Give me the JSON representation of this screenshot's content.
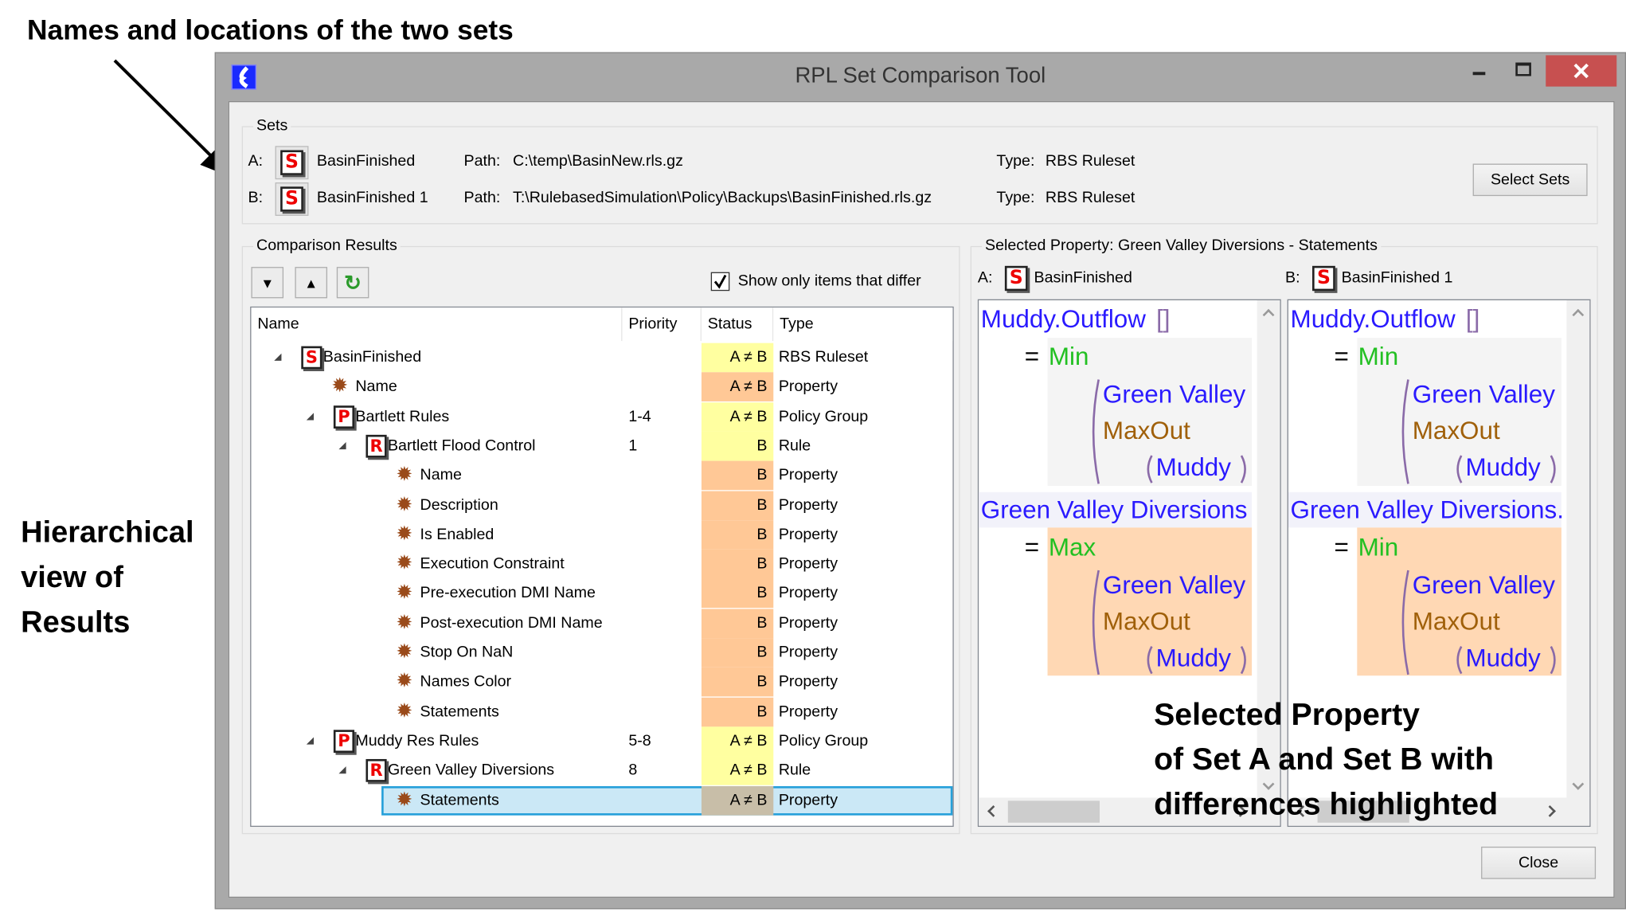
{
  "annotations": {
    "top": "Names and locations of the two sets",
    "left": [
      "Hierarchical",
      "view of",
      "Results"
    ],
    "right": [
      "Selected Property",
      "of Set A and Set B with",
      "differences highlighted"
    ]
  },
  "window": {
    "title": "RPL Set Comparison Tool",
    "close_color": "#c75050"
  },
  "sets": {
    "label": "Sets",
    "a": {
      "prefix": "A:",
      "icon": "S",
      "name": "BasinFinished",
      "path_label": "Path:",
      "path": "C:\\temp\\BasinNew.rls.gz",
      "type_label": "Type:",
      "type": "RBS Ruleset"
    },
    "b": {
      "prefix": "B:",
      "icon": "S",
      "name": "BasinFinished 1",
      "path_label": "Path:",
      "path": "T:\\RulebasedSimulation\\Policy\\Backups\\BasinFinished.rls.gz",
      "type_label": "Type:",
      "type": "RBS Ruleset"
    },
    "select_button": "Select Sets"
  },
  "results": {
    "label": "Comparison Results",
    "toolbar": {
      "next": "▼",
      "prev": "▲",
      "refresh": "↻"
    },
    "show_only_differ": {
      "label": "Show only items that differ",
      "checked": true
    },
    "columns": [
      "Name",
      "Priority",
      "Status",
      "Type"
    ],
    "status_colors": {
      "yellow": "#ffffa0",
      "orange": "#ffc896",
      "selected": "#c8bea8"
    },
    "rows": [
      {
        "name": "BasinFinished",
        "priority": "",
        "status": "A ≠ B",
        "type": "RBS Ruleset",
        "level": 0,
        "icon": "S",
        "expanded": true,
        "color": "yellow"
      },
      {
        "name": "Name",
        "priority": "",
        "status": "A ≠ B",
        "type": "Property",
        "level": 1,
        "icon": "gear",
        "color": "orange"
      },
      {
        "name": "Bartlett Rules",
        "priority": "1-4",
        "status": "A ≠ B",
        "type": "Policy Group",
        "level": 1,
        "icon": "P",
        "expanded": true,
        "color": "yellow"
      },
      {
        "name": "Bartlett Flood Control",
        "priority": "1",
        "status": "B",
        "type": "Rule",
        "level": 2,
        "icon": "R",
        "expanded": true,
        "color": "yellow"
      },
      {
        "name": "Name",
        "priority": "",
        "status": "B",
        "type": "Property",
        "level": 3,
        "icon": "gear",
        "color": "orange"
      },
      {
        "name": "Description",
        "priority": "",
        "status": "B",
        "type": "Property",
        "level": 3,
        "icon": "gear",
        "color": "orange"
      },
      {
        "name": "Is Enabled",
        "priority": "",
        "status": "B",
        "type": "Property",
        "level": 3,
        "icon": "gear",
        "color": "orange"
      },
      {
        "name": "Execution Constraint",
        "priority": "",
        "status": "B",
        "type": "Property",
        "level": 3,
        "icon": "gear",
        "color": "orange"
      },
      {
        "name": "Pre-execution DMI Name",
        "priority": "",
        "status": "B",
        "type": "Property",
        "level": 3,
        "icon": "gear",
        "color": "orange"
      },
      {
        "name": "Post-execution DMI Name",
        "priority": "",
        "status": "B",
        "type": "Property",
        "level": 3,
        "icon": "gear",
        "color": "orange"
      },
      {
        "name": "Stop On NaN",
        "priority": "",
        "status": "B",
        "type": "Property",
        "level": 3,
        "icon": "gear",
        "color": "orange"
      },
      {
        "name": "Names Color",
        "priority": "",
        "status": "B",
        "type": "Property",
        "level": 3,
        "icon": "gear",
        "color": "orange"
      },
      {
        "name": "Statements",
        "priority": "",
        "status": "B",
        "type": "Property",
        "level": 3,
        "icon": "gear",
        "color": "orange"
      },
      {
        "name": "Muddy Res Rules",
        "priority": "5-8",
        "status": "A ≠ B",
        "type": "Policy Group",
        "level": 1,
        "icon": "P",
        "expanded": true,
        "color": "yellow"
      },
      {
        "name": "Green Valley Diversions",
        "priority": "8",
        "status": "A ≠ B",
        "type": "Rule",
        "level": 2,
        "icon": "R",
        "expanded": true,
        "color": "yellow"
      },
      {
        "name": "Statements",
        "priority": "",
        "status": "A ≠ B",
        "type": "Property",
        "level": 3,
        "icon": "gear",
        "color": "selected",
        "selected": true
      }
    ]
  },
  "property": {
    "label": "Selected Property: Green Valley Diversions - Statements",
    "highlight_color": "#ffd8b4",
    "a": {
      "prefix": "A:",
      "icon": "S",
      "name": "BasinFinished",
      "s1": {
        "lhs": "Muddy.Outflow",
        "brackets": "[]",
        "eq": "=",
        "fn": "Min",
        "arg1": "Green Valley",
        "arg2": "MaxOut",
        "arg3": "Muddy"
      },
      "s2": {
        "lhs": "Green Valley Diversions",
        "eq": "=",
        "fn": "Max",
        "arg1": "Green Valley",
        "arg2": "MaxOut",
        "arg3": "Muddy"
      }
    },
    "b": {
      "prefix": "B:",
      "icon": "S",
      "name": "BasinFinished 1",
      "s1": {
        "lhs": "Muddy.Outflow",
        "brackets": "[]",
        "eq": "=",
        "fn": "Min",
        "arg1": "Green Valley",
        "arg2": "MaxOut",
        "arg3": "Muddy"
      },
      "s2": {
        "lhs": "Green Valley Diversions.",
        "eq": "=",
        "fn": "Min",
        "arg1": "Green Valley",
        "arg2": "MaxOut",
        "arg3": "Muddy"
      }
    }
  },
  "close_button": "Close"
}
